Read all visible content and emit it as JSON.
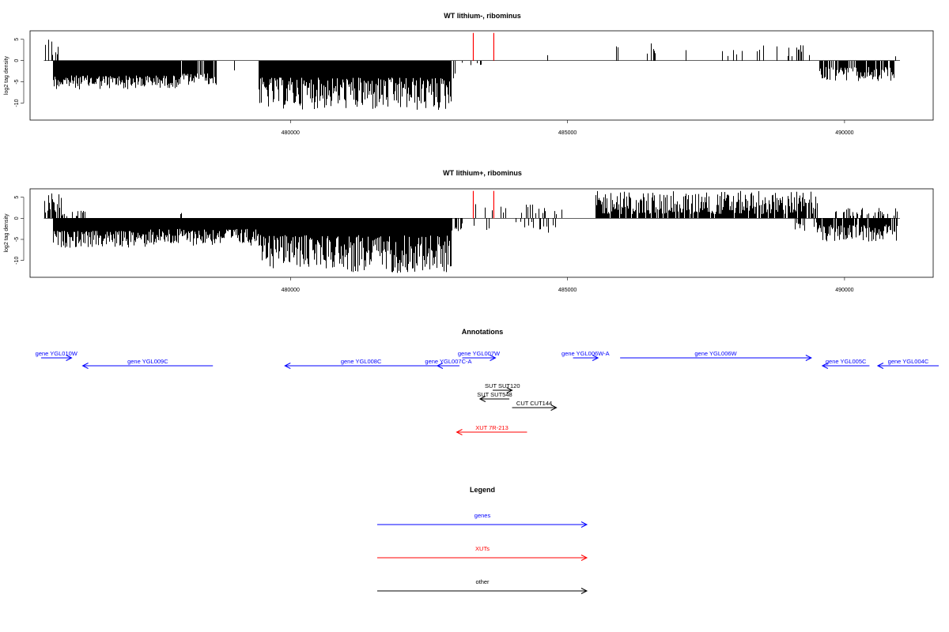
{
  "colors": {
    "genes": "#0000ff",
    "XUTs": "#ff0000",
    "other": "#000000",
    "bars": "#000000",
    "marker": "#ff0000"
  },
  "chart_data": [
    {
      "type": "bar",
      "title": "WT lithium-, ribominus",
      "ylabel": "log2 tag density",
      "xlim": [
        475300,
        491600
      ],
      "ylim": [
        -14,
        7
      ],
      "xticks": [
        480000,
        485000,
        490000
      ],
      "xtick_labels": [
        "480000",
        "485000",
        "490000"
      ],
      "yticks": [
        5,
        0,
        -5,
        -10
      ],
      "ytick_labels": [
        "5",
        "0",
        "-5",
        "-10"
      ],
      "markers": [
        {
          "x": 483300,
          "y": 6.5
        },
        {
          "x": 483670,
          "y": 6.5
        }
      ],
      "segments": [
        {
          "from": 475550,
          "to": 475680,
          "min": 1.5,
          "max": 5.5,
          "sign": 1,
          "density": 0.5
        },
        {
          "from": 475680,
          "to": 475800,
          "min": 1.0,
          "max": 3.5,
          "sign": 1,
          "density": 0.6
        },
        {
          "from": 475720,
          "to": 477400,
          "min": 3.5,
          "max": 6.8,
          "sign": -1,
          "density": 1.0
        },
        {
          "from": 477400,
          "to": 478000,
          "min": 3.5,
          "max": 6.5,
          "sign": -1,
          "density": 1.0
        },
        {
          "from": 478000,
          "to": 478680,
          "min": 3.0,
          "max": 6.0,
          "sign": -1,
          "density": 0.85
        },
        {
          "from": 478980,
          "to": 479000,
          "min": 2.0,
          "max": 2.6,
          "sign": -1,
          "density": 0.4
        },
        {
          "from": 479420,
          "to": 481000,
          "min": 4.0,
          "max": 11.5,
          "sign": -1,
          "density": 1.0
        },
        {
          "from": 481000,
          "to": 482900,
          "min": 4.0,
          "max": 12.0,
          "sign": -1,
          "density": 1.0
        },
        {
          "from": 482900,
          "to": 483000,
          "min": 1.5,
          "max": 5.0,
          "sign": -1,
          "density": 0.5
        },
        {
          "from": 483050,
          "to": 483500,
          "min": 0.5,
          "max": 1.5,
          "sign": -1,
          "density": 0.12
        },
        {
          "from": 483800,
          "to": 483900,
          "min": 1.5,
          "max": 3.0,
          "sign": 1,
          "density": 0.15
        },
        {
          "from": 484600,
          "to": 484700,
          "min": 0.8,
          "max": 1.3,
          "sign": 1,
          "density": 0.08
        },
        {
          "from": 485600,
          "to": 486100,
          "min": 1.5,
          "max": 3.5,
          "sign": 1,
          "density": 0.08
        },
        {
          "from": 486400,
          "to": 486650,
          "min": 1.5,
          "max": 4.3,
          "sign": 1,
          "density": 0.2
        },
        {
          "from": 486650,
          "to": 489400,
          "min": 1.0,
          "max": 3.8,
          "sign": 1,
          "density": 0.07
        },
        {
          "from": 489550,
          "to": 490900,
          "min": 1.5,
          "max": 4.8,
          "sign": -1,
          "density": 0.8
        },
        {
          "from": 490600,
          "to": 490950,
          "min": 1.0,
          "max": 2.5,
          "sign": 1,
          "density": 0.1
        }
      ]
    },
    {
      "type": "bar",
      "title": "WT lithium+, ribominus",
      "ylabel": "log2 tag density",
      "xlim": [
        475300,
        491600
      ],
      "ylim": [
        -14,
        7
      ],
      "xticks": [
        480000,
        485000,
        490000
      ],
      "xtick_labels": [
        "480000",
        "485000",
        "490000"
      ],
      "yticks": [
        5,
        0,
        -5,
        -10
      ],
      "ytick_labels": [
        "5",
        "0",
        "-5",
        "-10"
      ],
      "markers": [
        {
          "x": 483300,
          "y": 6.5
        },
        {
          "x": 483670,
          "y": 6.5
        }
      ],
      "segments": [
        {
          "from": 475550,
          "to": 475850,
          "min": 1.0,
          "max": 6.0,
          "sign": 1,
          "density": 0.6
        },
        {
          "from": 475850,
          "to": 476300,
          "min": 0.5,
          "max": 2.0,
          "sign": 1,
          "density": 0.25
        },
        {
          "from": 475720,
          "to": 477400,
          "min": 3.0,
          "max": 7.0,
          "sign": -1,
          "density": 1.0
        },
        {
          "from": 477400,
          "to": 479420,
          "min": 2.5,
          "max": 6.5,
          "sign": -1,
          "density": 1.0
        },
        {
          "from": 478000,
          "to": 478030,
          "min": 1.0,
          "max": 1.5,
          "sign": 1,
          "density": 0.5
        },
        {
          "from": 479420,
          "to": 481000,
          "min": 4.0,
          "max": 12.0,
          "sign": -1,
          "density": 1.0
        },
        {
          "from": 481000,
          "to": 482900,
          "min": 4.0,
          "max": 13.0,
          "sign": -1,
          "density": 1.0
        },
        {
          "from": 482900,
          "to": 483100,
          "min": 1.0,
          "max": 4.0,
          "sign": -1,
          "density": 0.4
        },
        {
          "from": 483100,
          "to": 485000,
          "min": 0.8,
          "max": 3.5,
          "sign": 1,
          "density": 0.15
        },
        {
          "from": 483100,
          "to": 485000,
          "min": 0.8,
          "max": 3.5,
          "sign": -1,
          "density": 0.12
        },
        {
          "from": 485500,
          "to": 489500,
          "min": 1.0,
          "max": 6.5,
          "sign": 1,
          "density": 0.9
        },
        {
          "from": 489100,
          "to": 489500,
          "min": 1.0,
          "max": 3.0,
          "sign": -1,
          "density": 0.3
        },
        {
          "from": 489500,
          "to": 490950,
          "min": 1.5,
          "max": 5.5,
          "sign": -1,
          "density": 0.9
        },
        {
          "from": 489800,
          "to": 490950,
          "min": 0.5,
          "max": 2.5,
          "sign": 1,
          "density": 0.3
        }
      ]
    }
  ],
  "annotations": {
    "title": "Annotations",
    "features": [
      {
        "label": "gene YGL010W",
        "type": "genes",
        "start": 475500,
        "end": 476050,
        "dir": "right",
        "row": 0
      },
      {
        "label": "gene YGL009C",
        "type": "genes",
        "start": 476250,
        "end": 478600,
        "dir": "left",
        "row": 1
      },
      {
        "label": "gene YGL008C",
        "type": "genes",
        "start": 479900,
        "end": 482650,
        "dir": "left",
        "row": 1
      },
      {
        "label": "gene YGL007C-A",
        "type": "genes",
        "start": 482650,
        "end": 483050,
        "dir": "left",
        "row": 1
      },
      {
        "label": "gene YGL007W",
        "type": "genes",
        "start": 483100,
        "end": 483700,
        "dir": "right",
        "row": 0
      },
      {
        "label": "gene YGL006W-A",
        "type": "genes",
        "start": 485100,
        "end": 485550,
        "dir": "right",
        "row": 0
      },
      {
        "label": "gene YGL006W",
        "type": "genes",
        "start": 485950,
        "end": 489400,
        "dir": "right",
        "row": 0
      },
      {
        "label": "gene YGL005C",
        "type": "genes",
        "start": 489600,
        "end": 490450,
        "dir": "left",
        "row": 1
      },
      {
        "label": "gene YGL004C",
        "type": "genes",
        "start": 490600,
        "end": 491700,
        "dir": "left",
        "row": 1
      },
      {
        "label": "SUT SUT120",
        "type": "other",
        "start": 483650,
        "end": 484000,
        "dir": "right",
        "row": 2
      },
      {
        "label": "SUT SUT548",
        "type": "other",
        "start": 483420,
        "end": 483950,
        "dir": "left",
        "row": 3
      },
      {
        "label": "CUT CUT144",
        "type": "other",
        "start": 484000,
        "end": 484800,
        "dir": "right",
        "row": 4
      },
      {
        "label": "XUT 7R-213",
        "type": "XUTs",
        "start": 483000,
        "end": 484270,
        "dir": "left",
        "row": 5
      }
    ]
  },
  "legend": {
    "title": "Legend",
    "items": [
      {
        "label": "genes",
        "type": "genes"
      },
      {
        "label": "XUTs",
        "type": "XUTs"
      },
      {
        "label": "other",
        "type": "other"
      }
    ]
  }
}
